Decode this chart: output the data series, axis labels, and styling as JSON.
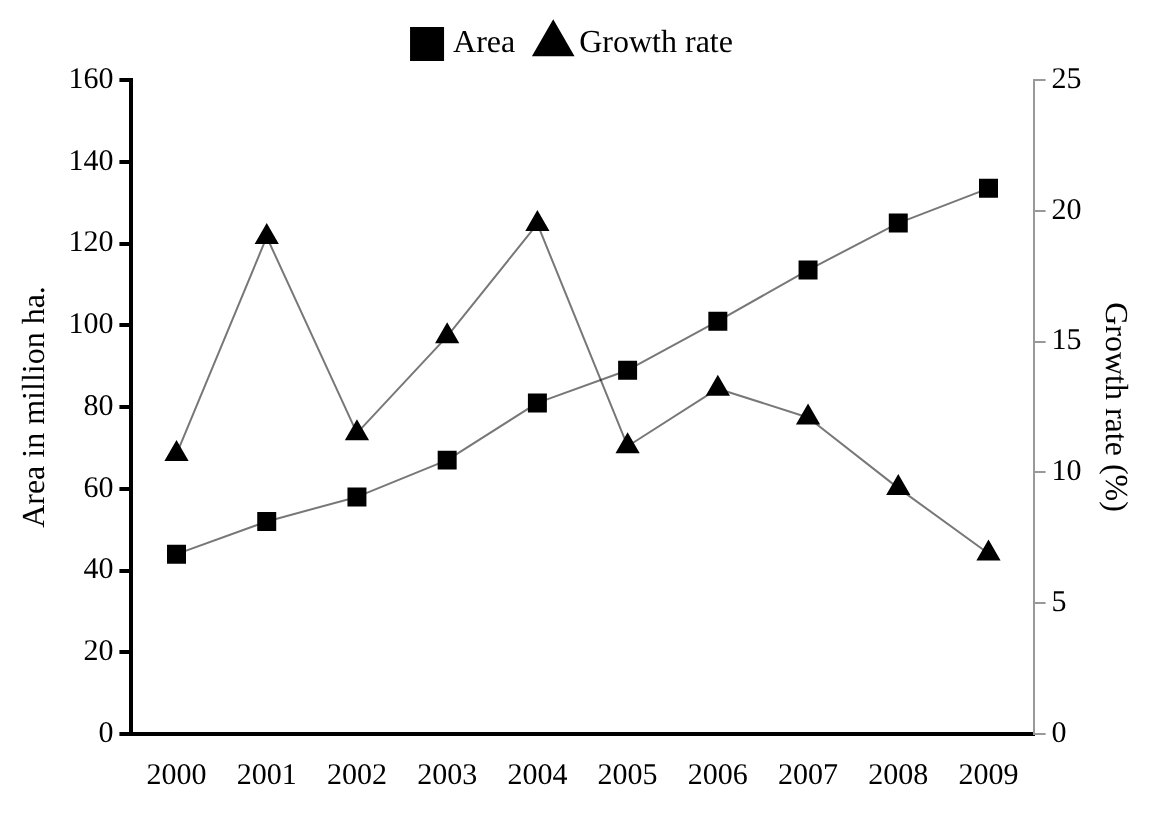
{
  "chart_data": {
    "type": "line",
    "categories": [
      "2000",
      "2001",
      "2002",
      "2003",
      "2004",
      "2005",
      "2006",
      "2007",
      "2008",
      "2009"
    ],
    "ylabel": "Area in million ha.",
    "y2label": "Growth rate (%)",
    "ylim": [
      0,
      160
    ],
    "yticks": [
      0,
      20,
      40,
      60,
      80,
      100,
      120,
      140,
      160
    ],
    "y2lim": [
      0,
      25
    ],
    "y2ticks": [
      0,
      5,
      10,
      15,
      20,
      25
    ],
    "grid": false,
    "legend": "top",
    "series": [
      {
        "name": "Area",
        "color": "#000000",
        "marker": "square",
        "values": [
          44,
          52,
          58,
          67,
          81,
          89,
          101,
          113.5,
          125,
          133.5
        ]
      },
      {
        "name": "Growth rate",
        "color": "#000000",
        "marker": "triangle",
        "axis": "y2",
        "values": [
          10.7,
          19,
          11.5,
          15.2,
          19.5,
          11,
          13.2,
          12.1,
          9.4,
          6.9
        ]
      }
    ]
  }
}
